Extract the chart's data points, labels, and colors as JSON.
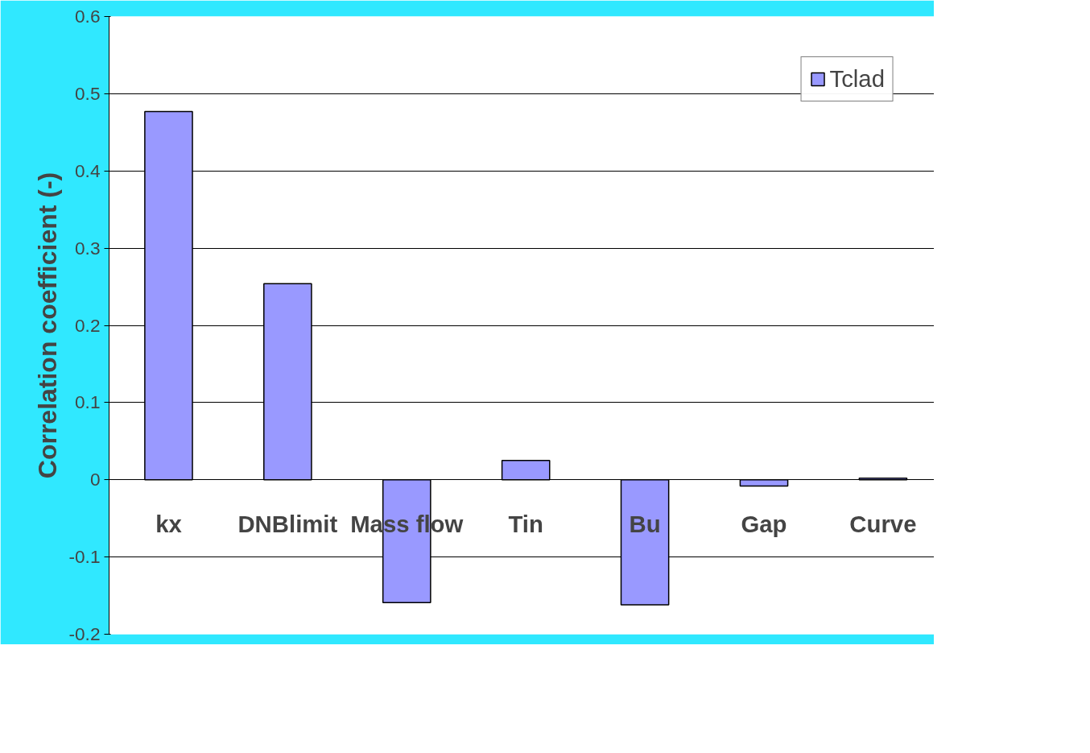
{
  "chart_data": {
    "type": "bar",
    "ylabel": "Correlation coefficient (-)",
    "categories": [
      "kx",
      "DNBlimit",
      "Mass flow",
      "Tin",
      "Bu",
      "Gap",
      "Curve"
    ],
    "series": [
      {
        "name": "Tclad",
        "color": "#9999ff",
        "values": [
          0.477,
          0.254,
          -0.159,
          0.025,
          -0.162,
          -0.008,
          0.002
        ]
      }
    ],
    "ylim": [
      -0.2,
      0.6
    ],
    "yticks": [
      -0.2,
      -0.1,
      0,
      0.1,
      0.2,
      0.3,
      0.4,
      0.5,
      0.6
    ],
    "grid": "y",
    "legend": "top right"
  }
}
